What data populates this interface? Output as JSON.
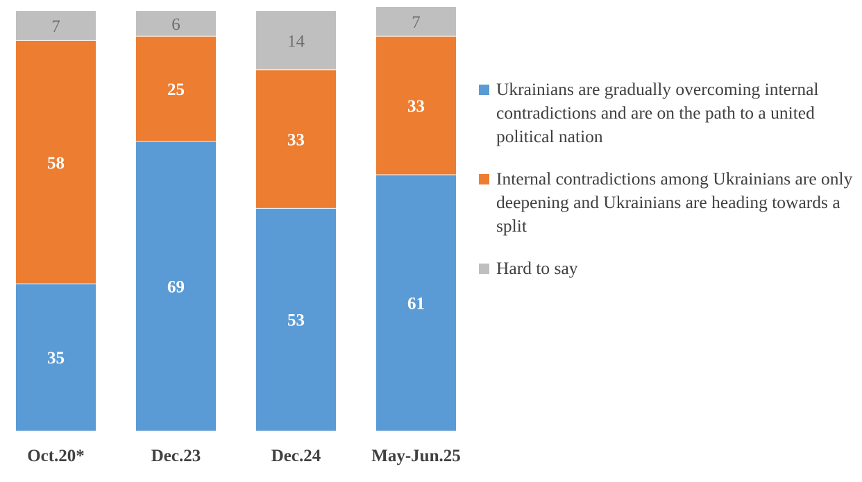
{
  "chart_data": {
    "type": "bar",
    "stacked": true,
    "normalized": true,
    "categories": [
      "Oct.20*",
      "Dec.23",
      "Dec.24",
      "May-Jun.25"
    ],
    "series": [
      {
        "name": "Ukrainians are gradually overcoming internal contradictions and are on the path to a united political nation",
        "color": "#5b9bd5",
        "label_color": "#ffffff",
        "values": [
          35,
          69,
          53,
          61
        ]
      },
      {
        "name": "Internal contradictions among Ukrainians are only deepening and Ukrainians are heading towards a split",
        "color": "#ed7d31",
        "label_color": "#ffffff",
        "values": [
          58,
          25,
          33,
          33
        ]
      },
      {
        "name": "Hard to say",
        "color": "#bfbfbf",
        "label_color": "#6f6f6f",
        "values": [
          7,
          6,
          14,
          7
        ]
      }
    ],
    "title": "",
    "xlabel": "",
    "ylabel": "",
    "ylim": [
      0,
      100
    ],
    "grid": false,
    "legend_position": "right"
  }
}
